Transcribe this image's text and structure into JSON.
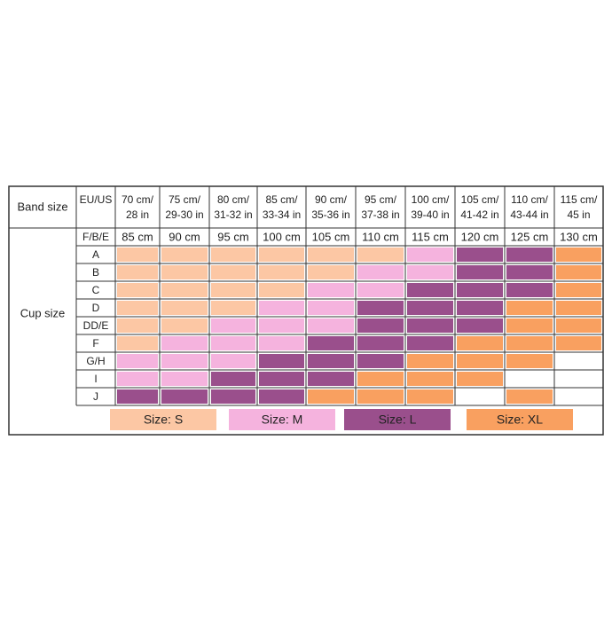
{
  "chart_data": {
    "type": "table",
    "band_label": "Band size",
    "eu_us_label": "EU/US",
    "fbe_label": "F/B/E",
    "cup_label": "Cup size",
    "columns": [
      {
        "band": [
          "70 cm/",
          "28 in"
        ],
        "fbe": "85 cm"
      },
      {
        "band": [
          "75 cm/",
          "29-30 in"
        ],
        "fbe": "90 cm"
      },
      {
        "band": [
          "80 cm/",
          "31-32 in"
        ],
        "fbe": "95 cm"
      },
      {
        "band": [
          "85 cm/",
          "33-34 in"
        ],
        "fbe": "100 cm"
      },
      {
        "band": [
          "90 cm/",
          "35-36 in"
        ],
        "fbe": "105 cm"
      },
      {
        "band": [
          "95 cm/",
          "37-38 in"
        ],
        "fbe": "110 cm"
      },
      {
        "band": [
          "100 cm/",
          "39-40 in"
        ],
        "fbe": "115 cm"
      },
      {
        "band": [
          "105 cm/",
          "41-42 in"
        ],
        "fbe": "120 cm"
      },
      {
        "band": [
          "110 cm/",
          "43-44 in"
        ],
        "fbe": "125 cm"
      },
      {
        "band": [
          "115 cm/",
          "45 in"
        ],
        "fbe": "130 cm"
      }
    ],
    "cups": [
      "A",
      "B",
      "C",
      "D",
      "DD/E",
      "F",
      "G/H",
      "I",
      "J"
    ],
    "grid": [
      [
        "S",
        "S",
        "S",
        "S",
        "S",
        "S",
        "M",
        "L",
        "L",
        "XL"
      ],
      [
        "S",
        "S",
        "S",
        "S",
        "S",
        "M",
        "M",
        "L",
        "L",
        "XL"
      ],
      [
        "S",
        "S",
        "S",
        "S",
        "M",
        "M",
        "L",
        "L",
        "L",
        "XL"
      ],
      [
        "S",
        "S",
        "S",
        "M",
        "M",
        "L",
        "L",
        "L",
        "XL",
        "XL"
      ],
      [
        "S",
        "S",
        "M",
        "M",
        "M",
        "L",
        "L",
        "L",
        "XL",
        "XL"
      ],
      [
        "S",
        "M",
        "M",
        "M",
        "L",
        "L",
        "L",
        "XL",
        "XL",
        "XL"
      ],
      [
        "M",
        "M",
        "M",
        "L",
        "L",
        "L",
        "XL",
        "XL",
        "XL",
        ""
      ],
      [
        "M",
        "M",
        "L",
        "L",
        "L",
        "XL",
        "XL",
        "XL",
        "",
        ""
      ],
      [
        "L",
        "L",
        "L",
        "L",
        "XL",
        "XL",
        "XL",
        "",
        "XL",
        ""
      ]
    ],
    "legend": [
      {
        "key": "S",
        "label": "Size: S"
      },
      {
        "key": "M",
        "label": "Size: M"
      },
      {
        "key": "L",
        "label": "Size: L"
      },
      {
        "key": "XL",
        "label": "Size: XL"
      }
    ],
    "colors": {
      "S": "#fcc7a4",
      "M": "#f5b3de",
      "L": "#9a4f8c",
      "XL": "#f9a060",
      "empty": "#ffffff"
    }
  }
}
